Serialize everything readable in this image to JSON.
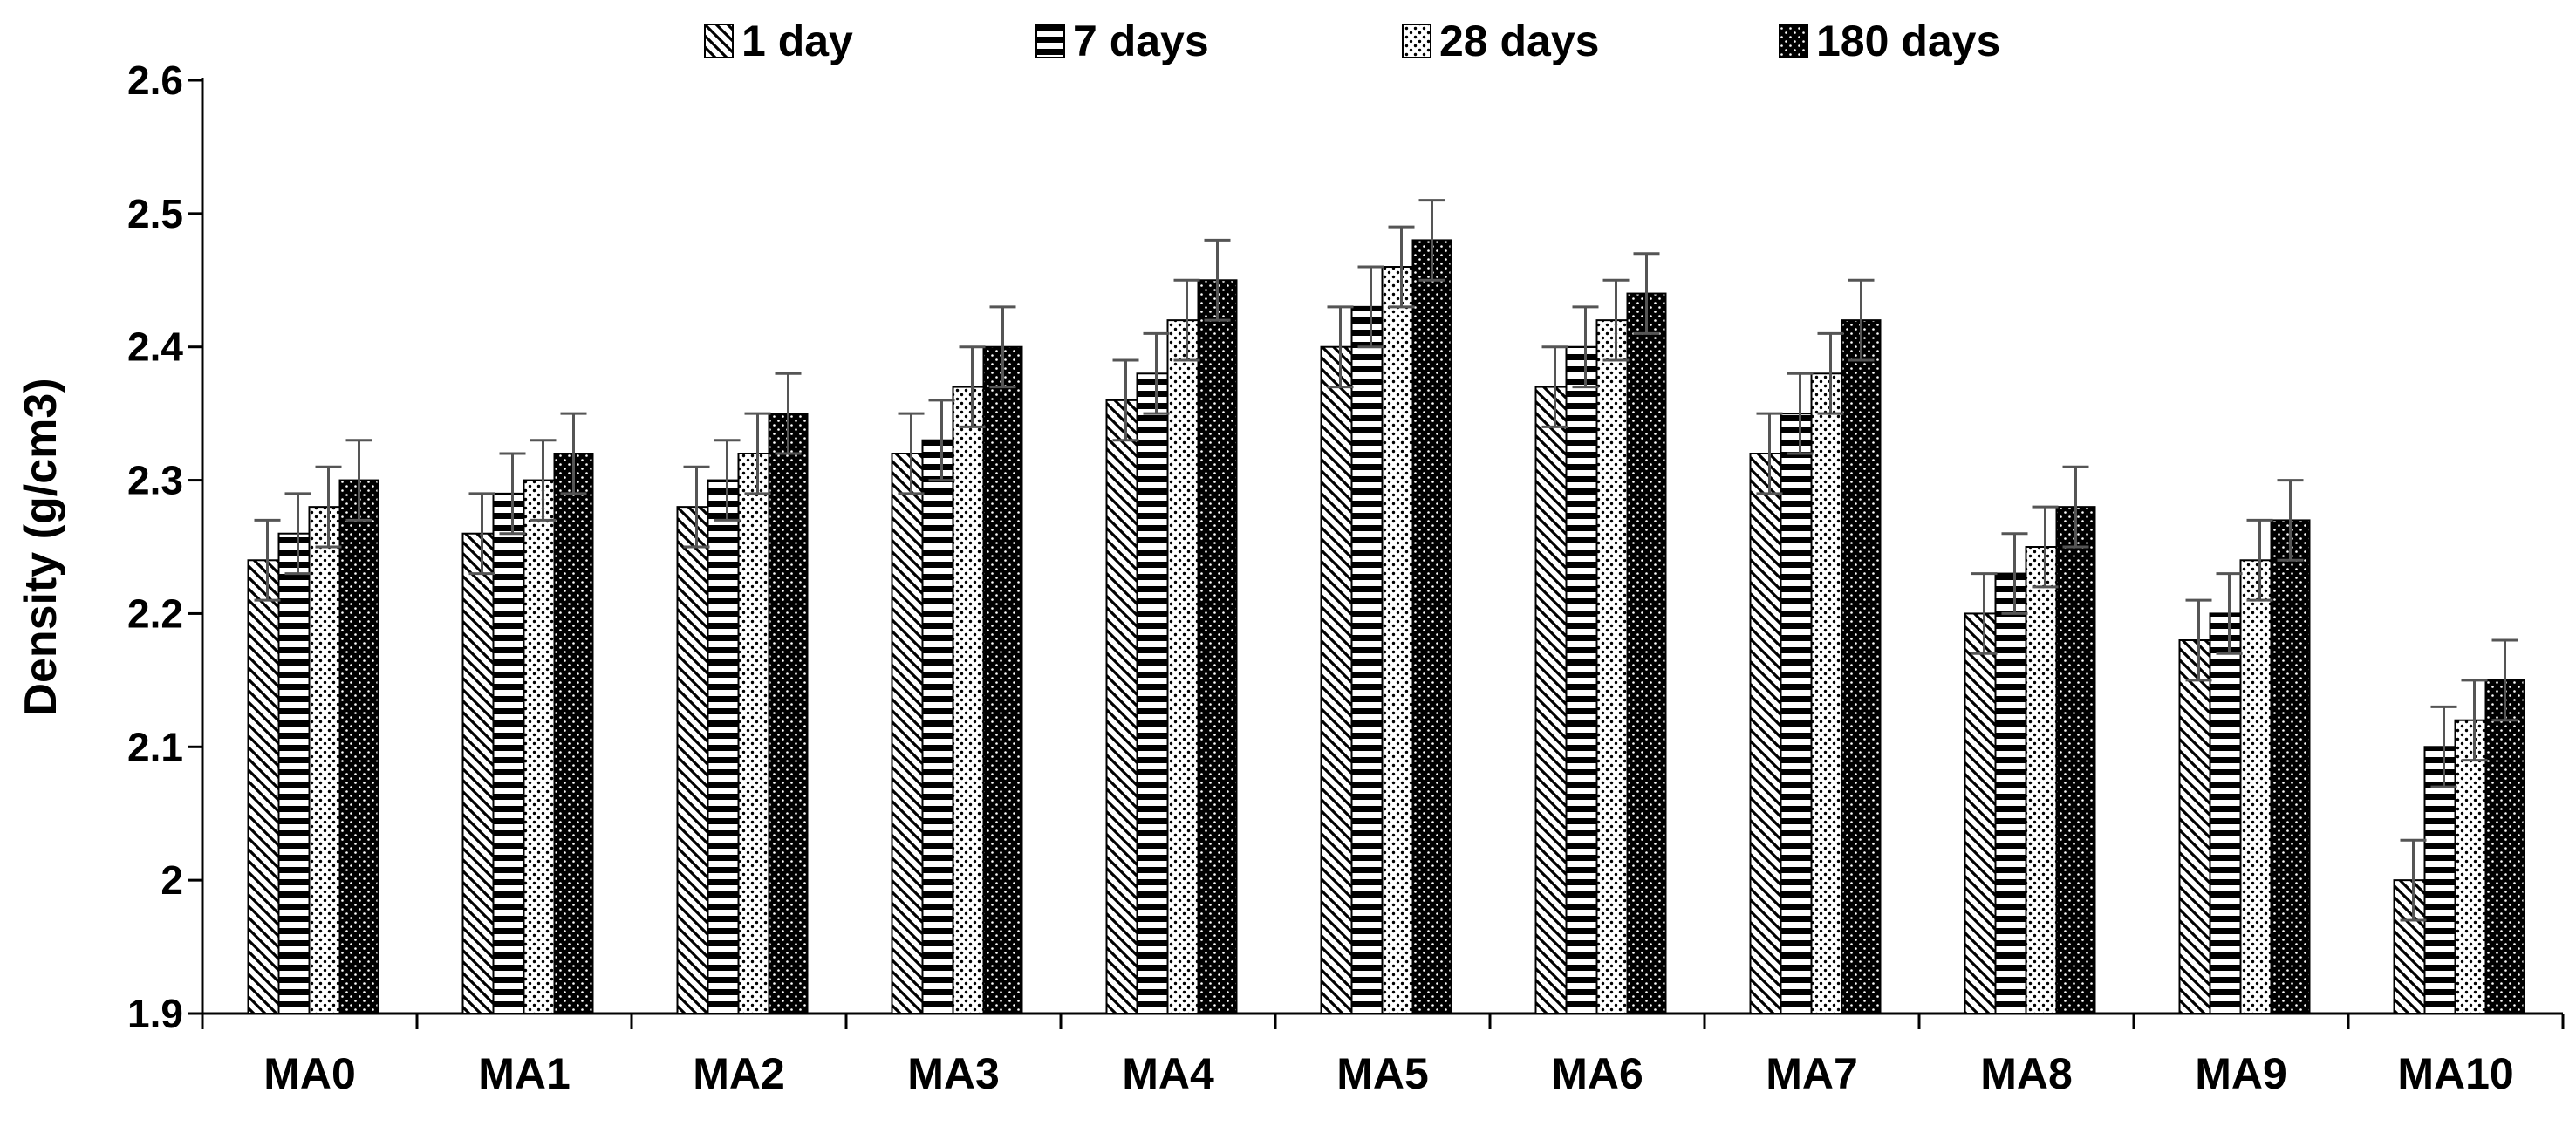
{
  "chart_data": {
    "type": "bar",
    "title": "",
    "xlabel": "",
    "ylabel": "Density (g/cm3)",
    "ylim": [
      1.9,
      2.6
    ],
    "yticks": [
      "1.9",
      "2",
      "2.1",
      "2.2",
      "2.3",
      "2.4",
      "2.5",
      "2.6"
    ],
    "grid": false,
    "legend_position": "top",
    "categories": [
      "MA0",
      "MA1",
      "MA2",
      "MA3",
      "MA4",
      "MA5",
      "MA6",
      "MA7",
      "MA8",
      "MA9",
      "MA10"
    ],
    "error_bar": 0.03,
    "series": [
      {
        "name": "1 day",
        "pattern": "diagonal",
        "values": [
          2.24,
          2.26,
          2.28,
          2.32,
          2.36,
          2.4,
          2.37,
          2.32,
          2.2,
          2.18,
          2.0
        ]
      },
      {
        "name": "7 days",
        "pattern": "horizontal",
        "values": [
          2.26,
          2.29,
          2.3,
          2.33,
          2.38,
          2.43,
          2.4,
          2.35,
          2.23,
          2.2,
          2.1
        ]
      },
      {
        "name": "28 days",
        "pattern": "dots",
        "values": [
          2.28,
          2.3,
          2.32,
          2.37,
          2.42,
          2.46,
          2.42,
          2.38,
          2.25,
          2.24,
          2.12
        ]
      },
      {
        "name": "180 days",
        "pattern": "dense",
        "values": [
          2.3,
          2.32,
          2.35,
          2.4,
          2.45,
          2.48,
          2.44,
          2.42,
          2.28,
          2.27,
          2.15
        ]
      }
    ]
  }
}
